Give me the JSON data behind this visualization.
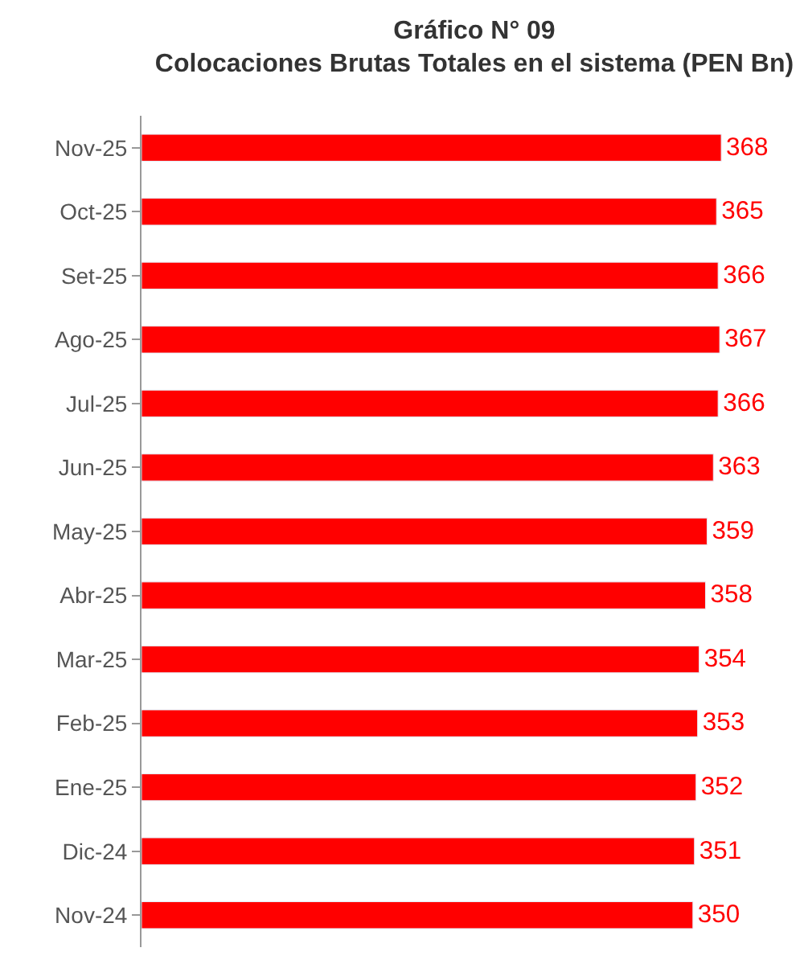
{
  "chart_data": {
    "type": "bar",
    "orientation": "horizontal",
    "title": "Gráfico N° 09",
    "subtitle": "Colocaciones Brutas Totales en el sistema (PEN Bn)",
    "categories": [
      "Nov-25",
      "Oct-25",
      "Set-25",
      "Ago-25",
      "Jul-25",
      "Jun-25",
      "May-25",
      "Abr-25",
      "Mar-25",
      "Feb-25",
      "Ene-25",
      "Dic-24",
      "Nov-24"
    ],
    "values": [
      368,
      365,
      366,
      367,
      366,
      363,
      359,
      358,
      354,
      353,
      352,
      351,
      350
    ],
    "color": "#ff0000",
    "data_labels": true,
    "legend": false,
    "tick_labels": "y"
  }
}
